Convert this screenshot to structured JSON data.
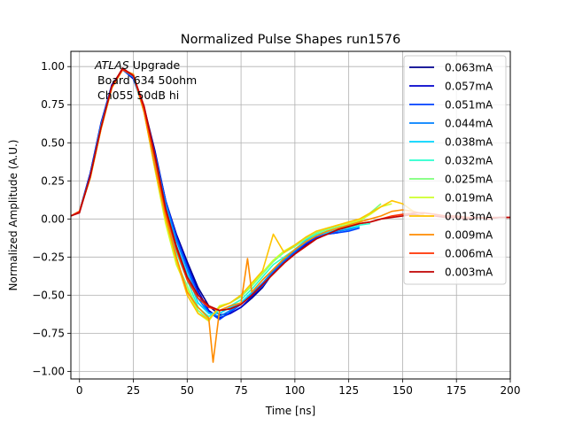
{
  "chart_data": {
    "type": "line",
    "title": "Normalized Pulse Shapes run1576",
    "xlabel": "Time [ns]",
    "ylabel": "Normalized Amplitude (A.U.)",
    "xlim": [
      -4,
      200
    ],
    "ylim": [
      -1.05,
      1.1
    ],
    "xticks": [
      0,
      25,
      50,
      75,
      100,
      125,
      150,
      175,
      200
    ],
    "xtick_labels": [
      "0",
      "25",
      "50",
      "75",
      "100",
      "125",
      "150",
      "175",
      "200"
    ],
    "yticks": [
      -1.0,
      -0.75,
      -0.5,
      -0.25,
      0.0,
      0.25,
      0.5,
      0.75,
      1.0
    ],
    "ytick_labels": [
      "−1.00",
      "−0.75",
      "−0.50",
      "−0.25",
      "0.00",
      "0.25",
      "0.50",
      "0.75",
      "1.00"
    ],
    "grid": true,
    "legend_position": "top-right",
    "annotation": {
      "line1_italic": "ATLAS",
      "line1_rest": " Upgrade",
      "line2": "Board 634 50ohm",
      "line3": "Ch055 50dB hi"
    },
    "series": [
      {
        "name": "0.063mA",
        "color": "#00008f",
        "x": [
          -4,
          0,
          5,
          10,
          15,
          20,
          25,
          30,
          35,
          40,
          45,
          50,
          55,
          60,
          65,
          70,
          75,
          80,
          85,
          90,
          95,
          100,
          105,
          110,
          115,
          120
        ],
        "y": [
          0.02,
          0.05,
          0.3,
          0.62,
          0.88,
          0.98,
          0.93,
          0.73,
          0.45,
          0.12,
          -0.1,
          -0.28,
          -0.45,
          -0.57,
          -0.63,
          -0.62,
          -0.58,
          -0.52,
          -0.45,
          -0.35,
          -0.27,
          -0.22,
          -0.17,
          -0.13,
          -0.1,
          -0.09
        ]
      },
      {
        "name": "0.057mA",
        "color": "#0000cc",
        "x": [
          -4,
          0,
          5,
          10,
          15,
          20,
          25,
          30,
          35,
          40,
          45,
          50,
          55,
          60,
          65,
          70,
          75,
          80,
          85,
          90,
          95,
          100,
          105,
          110,
          115,
          120
        ],
        "y": [
          0.02,
          0.05,
          0.3,
          0.63,
          0.88,
          0.98,
          0.92,
          0.72,
          0.44,
          0.12,
          -0.11,
          -0.3,
          -0.47,
          -0.6,
          -0.65,
          -0.62,
          -0.58,
          -0.51,
          -0.44,
          -0.35,
          -0.27,
          -0.22,
          -0.17,
          -0.13,
          -0.1,
          -0.08
        ]
      },
      {
        "name": "0.051mA",
        "color": "#0040ff",
        "x": [
          -4,
          0,
          5,
          10,
          15,
          20,
          25,
          30,
          35,
          40,
          45,
          50,
          55,
          60,
          65,
          70,
          75,
          80,
          85,
          90,
          95,
          100,
          105,
          110,
          115,
          120,
          125,
          130
        ],
        "y": [
          0.02,
          0.05,
          0.29,
          0.62,
          0.87,
          0.98,
          0.93,
          0.72,
          0.43,
          0.12,
          -0.12,
          -0.31,
          -0.49,
          -0.61,
          -0.66,
          -0.61,
          -0.56,
          -0.5,
          -0.44,
          -0.35,
          -0.28,
          -0.22,
          -0.16,
          -0.12,
          -0.1,
          -0.09,
          -0.08,
          -0.06
        ]
      },
      {
        "name": "0.044mA",
        "color": "#0080ff",
        "x": [
          -4,
          0,
          5,
          10,
          15,
          20,
          25,
          30,
          35,
          40,
          45,
          50,
          55,
          60,
          65,
          70,
          75,
          80,
          85,
          90,
          95,
          100,
          105,
          110,
          115,
          120,
          125,
          130
        ],
        "y": [
          0.02,
          0.05,
          0.28,
          0.61,
          0.87,
          0.98,
          0.93,
          0.71,
          0.42,
          0.1,
          -0.14,
          -0.33,
          -0.52,
          -0.62,
          -0.64,
          -0.6,
          -0.56,
          -0.49,
          -0.42,
          -0.34,
          -0.27,
          -0.21,
          -0.15,
          -0.11,
          -0.09,
          -0.08,
          -0.07,
          -0.05
        ]
      },
      {
        "name": "0.038mA",
        "color": "#00d4ff",
        "x": [
          -4,
          0,
          5,
          10,
          15,
          20,
          25,
          30,
          35,
          40,
          45,
          50,
          55,
          60,
          65,
          70,
          75,
          80,
          85,
          90,
          95,
          100,
          105,
          110,
          115,
          120,
          125,
          130
        ],
        "y": [
          0.02,
          0.05,
          0.28,
          0.61,
          0.87,
          0.98,
          0.94,
          0.7,
          0.38,
          0.08,
          -0.17,
          -0.36,
          -0.55,
          -0.62,
          -0.62,
          -0.58,
          -0.55,
          -0.48,
          -0.4,
          -0.33,
          -0.26,
          -0.2,
          -0.14,
          -0.1,
          -0.09,
          -0.07,
          -0.06,
          -0.05
        ]
      },
      {
        "name": "0.032mA",
        "color": "#29ffce",
        "x": [
          -4,
          0,
          5,
          10,
          15,
          20,
          25,
          30,
          35,
          40,
          45,
          50,
          55,
          60,
          65,
          70,
          75,
          80,
          85,
          90,
          95,
          100,
          105,
          110,
          115,
          120,
          125,
          130,
          135
        ],
        "y": [
          0.02,
          0.05,
          0.28,
          0.6,
          0.87,
          0.98,
          0.94,
          0.7,
          0.36,
          0.04,
          -0.22,
          -0.4,
          -0.58,
          -0.64,
          -0.6,
          -0.57,
          -0.53,
          -0.46,
          -0.38,
          -0.3,
          -0.25,
          -0.2,
          -0.15,
          -0.1,
          -0.08,
          -0.06,
          -0.05,
          -0.04,
          -0.03
        ]
      },
      {
        "name": "0.025mA",
        "color": "#7dff7a",
        "x": [
          -4,
          0,
          5,
          10,
          15,
          20,
          25,
          30,
          35,
          40,
          45,
          50,
          55,
          60,
          65,
          70,
          75,
          80,
          85,
          90,
          95,
          100,
          105,
          110,
          115,
          120,
          125,
          130,
          135,
          140
        ],
        "y": [
          0.02,
          0.05,
          0.27,
          0.6,
          0.86,
          0.98,
          0.95,
          0.7,
          0.33,
          -0.02,
          -0.28,
          -0.44,
          -0.6,
          -0.66,
          -0.58,
          -0.55,
          -0.51,
          -0.44,
          -0.36,
          -0.28,
          -0.22,
          -0.18,
          -0.13,
          -0.09,
          -0.07,
          -0.05,
          -0.04,
          -0.02,
          0.04,
          0.1
        ]
      },
      {
        "name": "0.019mA",
        "color": "#ceff29",
        "x": [
          -4,
          0,
          5,
          10,
          15,
          20,
          25,
          30,
          35,
          40,
          45,
          50,
          55,
          60,
          65,
          70,
          75,
          80,
          85,
          90,
          95,
          100,
          105,
          110,
          115,
          120,
          125,
          130,
          135,
          140,
          145
        ],
        "y": [
          0.02,
          0.05,
          0.27,
          0.59,
          0.86,
          0.98,
          0.95,
          0.7,
          0.33,
          -0.03,
          -0.3,
          -0.46,
          -0.62,
          -0.67,
          -0.57,
          -0.55,
          -0.5,
          -0.43,
          -0.35,
          -0.27,
          -0.21,
          -0.17,
          -0.12,
          -0.08,
          -0.06,
          -0.04,
          -0.03,
          -0.01,
          0.03,
          0.08,
          0.1
        ]
      },
      {
        "name": "0.013mA",
        "color": "#ffc400",
        "x": [
          -4,
          0,
          5,
          10,
          15,
          20,
          25,
          30,
          35,
          40,
          45,
          50,
          55,
          60,
          65,
          70,
          75,
          80,
          85,
          90,
          95,
          100,
          105,
          110,
          115,
          120,
          125,
          130,
          135,
          140,
          145,
          150,
          155
        ],
        "y": [
          0.02,
          0.05,
          0.27,
          0.59,
          0.86,
          0.98,
          0.95,
          0.7,
          0.34,
          0.0,
          -0.27,
          -0.5,
          -0.62,
          -0.66,
          -0.58,
          -0.55,
          -0.5,
          -0.42,
          -0.34,
          -0.1,
          -0.22,
          -0.17,
          -0.12,
          -0.08,
          -0.06,
          -0.04,
          -0.02,
          0.0,
          0.04,
          0.08,
          0.12,
          0.1,
          0.05
        ]
      },
      {
        "name": "0.009mA",
        "color": "#ff8c00",
        "x": [
          -4,
          0,
          5,
          10,
          15,
          20,
          25,
          30,
          35,
          40,
          45,
          50,
          55,
          60,
          62,
          65,
          70,
          75,
          78,
          80,
          85,
          90,
          95,
          100,
          105,
          110,
          115,
          120,
          125,
          130,
          135,
          140,
          145,
          150,
          155,
          160
        ],
        "y": [
          0.02,
          0.05,
          0.27,
          0.59,
          0.86,
          0.98,
          0.95,
          0.7,
          0.35,
          0.02,
          -0.25,
          -0.48,
          -0.58,
          -0.65,
          -0.94,
          -0.6,
          -0.57,
          -0.55,
          -0.26,
          -0.48,
          -0.4,
          -0.33,
          -0.26,
          -0.2,
          -0.15,
          -0.11,
          -0.08,
          -0.06,
          -0.04,
          -0.02,
          0.0,
          0.02,
          0.05,
          0.06,
          0.05,
          0.03
        ]
      },
      {
        "name": "0.006mA",
        "color": "#ff3000",
        "x": [
          -4,
          0,
          5,
          10,
          15,
          20,
          25,
          30,
          35,
          40,
          45,
          50,
          55,
          60,
          65,
          70,
          75,
          80,
          85,
          90,
          95,
          100,
          105,
          110,
          115,
          120,
          125,
          130,
          135,
          140,
          145,
          150,
          155,
          160,
          165,
          170,
          175,
          180,
          185,
          190,
          195,
          200
        ],
        "y": [
          0.02,
          0.05,
          0.28,
          0.6,
          0.87,
          0.98,
          0.94,
          0.72,
          0.4,
          0.05,
          -0.2,
          -0.4,
          -0.52,
          -0.58,
          -0.6,
          -0.59,
          -0.56,
          -0.5,
          -0.43,
          -0.36,
          -0.29,
          -0.23,
          -0.18,
          -0.13,
          -0.1,
          -0.07,
          -0.05,
          -0.03,
          -0.02,
          0.0,
          0.02,
          0.03,
          0.04,
          0.04,
          0.03,
          0.02,
          0.02,
          0.01,
          0.01,
          0.01,
          0.01,
          0.01
        ]
      },
      {
        "name": "0.003mA",
        "color": "#c00000",
        "x": [
          -4,
          0,
          5,
          10,
          15,
          20,
          25,
          30,
          35,
          40,
          45,
          50,
          55,
          60,
          65,
          70,
          75,
          80,
          85,
          90,
          95,
          100,
          105,
          110,
          115,
          120,
          125,
          130,
          135,
          140,
          145,
          150,
          155,
          160,
          165,
          170,
          175,
          180,
          185,
          190,
          195,
          200
        ],
        "y": [
          0.02,
          0.04,
          0.28,
          0.6,
          0.87,
          0.99,
          0.94,
          0.74,
          0.42,
          0.07,
          -0.18,
          -0.38,
          -0.5,
          -0.57,
          -0.6,
          -0.59,
          -0.56,
          -0.5,
          -0.43,
          -0.36,
          -0.29,
          -0.23,
          -0.18,
          -0.13,
          -0.1,
          -0.07,
          -0.05,
          -0.03,
          -0.02,
          0.0,
          0.01,
          0.02,
          0.03,
          0.02,
          0.02,
          0.01,
          0.01,
          0.0,
          0.01,
          0.0,
          0.01,
          0.01
        ]
      }
    ]
  }
}
